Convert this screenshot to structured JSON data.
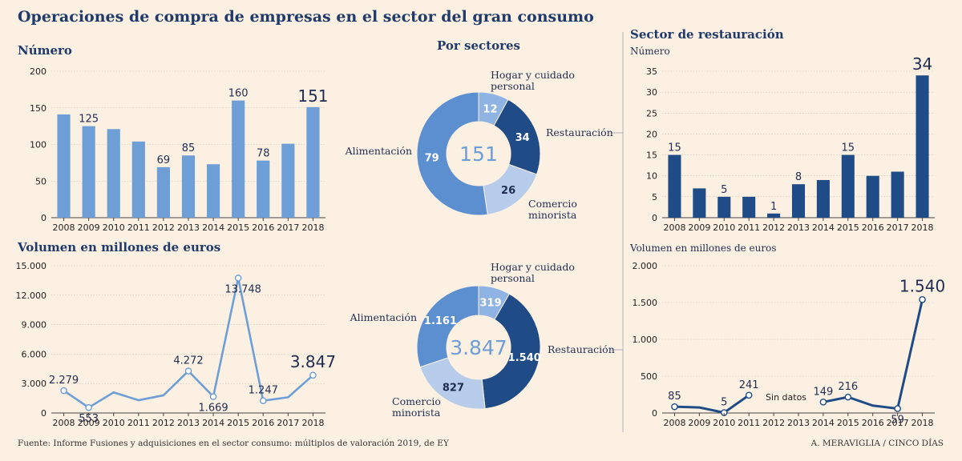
{
  "header": {
    "title": "Operaciones de compra de empresas en el sector del gran consumo",
    "footer_source": "Fuente: Informe Fusiones y adquisiciones en el sector consumo: múltiplos de valoración 2019, de EY",
    "footer_credit": "A. MERAVIGLIA / CINCO DÍAS"
  },
  "colors": {
    "light": "#6e9ed6",
    "dark": "#1f4b86",
    "pale": "#b7cbea",
    "mid": "#5b8fd0",
    "bg": "#fbf0e1"
  },
  "chart_data": [
    {
      "id": "numero",
      "type": "bar",
      "title": "Número",
      "categories": [
        "2008",
        "2009",
        "2010",
        "2011",
        "2012",
        "2013",
        "2014",
        "2015",
        "2016",
        "2017",
        "2018"
      ],
      "values": [
        141,
        125,
        121,
        104,
        69,
        85,
        73,
        160,
        78,
        101,
        151
      ],
      "labels": [
        "",
        "125",
        "",
        "",
        "69",
        "85",
        "",
        "160",
        "78",
        "",
        "151"
      ],
      "ylim": [
        0,
        200
      ],
      "yticks": [
        0,
        50,
        100,
        150,
        200
      ],
      "ytick_labels": [
        "0",
        "50",
        "100",
        "150",
        "200"
      ]
    },
    {
      "id": "volumen",
      "type": "line",
      "title": "Volumen en millones de euros",
      "categories": [
        "2008",
        "2009",
        "2010",
        "2011",
        "2012",
        "2013",
        "2014",
        "2015",
        "2016",
        "2017",
        "2018"
      ],
      "values": [
        2279,
        553,
        2100,
        1300,
        1800,
        4272,
        1669,
        13748,
        1247,
        1600,
        3847
      ],
      "labels": [
        "2.279",
        "553",
        "",
        "",
        "",
        "4.272",
        "1.669",
        "13.748",
        "1.247",
        "",
        "3.847"
      ],
      "ylim": [
        0,
        15000
      ],
      "yticks": [
        0,
        3000,
        6000,
        9000,
        12000,
        15000
      ],
      "ytick_labels": [
        "0",
        "3.000",
        "6.000",
        "9.000",
        "12.000",
        "15.000"
      ]
    },
    {
      "id": "sectores-numero",
      "type": "pie",
      "title": "Por sectores",
      "total": "151",
      "segments": [
        {
          "name": "Hogar y cuidado personal",
          "value": 12,
          "label": "12"
        },
        {
          "name": "Restauración",
          "value": 34,
          "label": "34"
        },
        {
          "name": "Comercio minorista",
          "value": 26,
          "label": "26"
        },
        {
          "name": "Alimentación",
          "value": 79,
          "label": "79"
        }
      ]
    },
    {
      "id": "sectores-volumen",
      "type": "pie",
      "total": "3.847",
      "segments": [
        {
          "name": "Hogar y cuidado personal",
          "value": 319,
          "label": "319"
        },
        {
          "name": "Restauración",
          "value": 1540,
          "label": "1.540"
        },
        {
          "name": "Comercio minorista",
          "value": 827,
          "label": "827"
        },
        {
          "name": "Alimentación",
          "value": 1161,
          "label": "1.161"
        }
      ]
    },
    {
      "id": "rest-numero",
      "type": "bar",
      "title": "Sector de restauración",
      "ylabel": "Número",
      "categories": [
        "2008",
        "2009",
        "2010",
        "2011",
        "2012",
        "2013",
        "2014",
        "2015",
        "2016",
        "2017",
        "2018"
      ],
      "values": [
        15,
        7,
        5,
        5,
        1,
        8,
        9,
        15,
        10,
        11,
        34
      ],
      "labels": [
        "15",
        "",
        "5",
        "",
        "1",
        "8",
        "",
        "15",
        "",
        "",
        "34"
      ],
      "ylim": [
        0,
        35
      ],
      "yticks": [
        0,
        5,
        10,
        15,
        20,
        25,
        30,
        35
      ],
      "ytick_labels": [
        "0",
        "5",
        "10",
        "15",
        "20",
        "25",
        "30",
        "35"
      ]
    },
    {
      "id": "rest-volumen",
      "type": "line",
      "title": "Volumen en millones de euros",
      "categories": [
        "2008",
        "2009",
        "2010",
        "2011",
        "2012",
        "2013",
        "2014",
        "2015",
        "2016",
        "2017",
        "2018"
      ],
      "segments_x": [
        [
          0,
          3
        ],
        [
          6,
          10
        ]
      ],
      "values": [
        85,
        75,
        5,
        241,
        null,
        null,
        149,
        216,
        100,
        59,
        1540
      ],
      "labels": [
        "85",
        "",
        "5",
        "241",
        "",
        "",
        "149",
        "216",
        "",
        "59",
        "1.540"
      ],
      "markers": [
        0,
        2,
        3,
        6,
        7,
        9,
        10
      ],
      "note": "Sin datos",
      "ylim": [
        0,
        2000
      ],
      "yticks": [
        0,
        500,
        1000,
        1500,
        2000
      ],
      "ytick_labels": [
        "0",
        "500",
        "1.000",
        "1.500",
        "2.000"
      ]
    }
  ]
}
